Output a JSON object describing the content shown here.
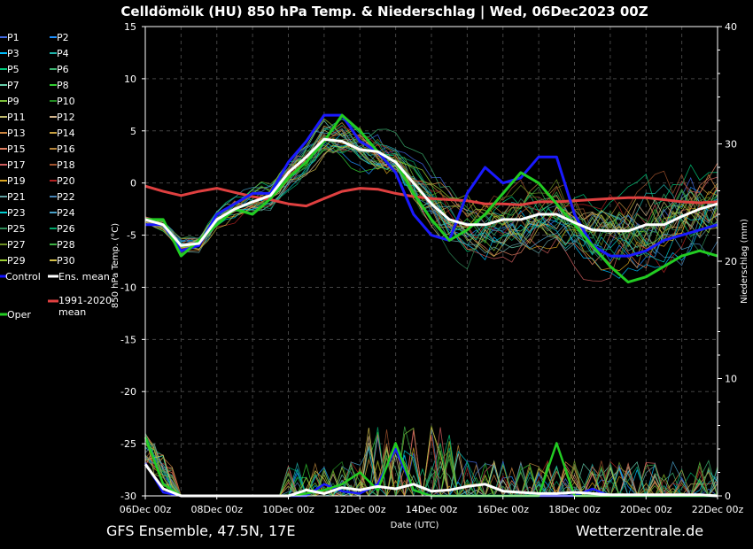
{
  "title": "Celldömölk  (HU)  850 hPa Temp. & Niederschlag | Wed, 06Dec2023 00Z",
  "footer_left": "GFS Ensemble, 47.5N, 17E",
  "footer_right": "Wetterzentrale.de",
  "chart_data": {
    "type": "line",
    "title": "Celldömölk  (HU)  850 hPa Temp. & Niederschlag | Wed, 06Dec2023 00Z",
    "xlabel": "Date (UTC)",
    "ylabel": "850 hPa Temp. (°C)",
    "y2label": "Niederschlag (mm)",
    "ylim": [
      -30,
      15
    ],
    "y2lim": [
      0,
      40
    ],
    "xlim_hours": [
      0,
      384
    ],
    "x_tick_hours": [
      0,
      48,
      96,
      144,
      192,
      240,
      288,
      336,
      384
    ],
    "x_tick_labels": [
      "06Dec 00z",
      "08Dec 00z",
      "10Dec 00z",
      "12Dec 00z",
      "14Dec 00z",
      "16Dec 00z",
      "18Dec 00z",
      "20Dec 00z",
      "22Dec 00z"
    ],
    "y_ticks": [
      15,
      10,
      5,
      0,
      -5,
      -10,
      -15,
      -20,
      -25,
      -30
    ],
    "y2_ticks": [
      40,
      30,
      20,
      10,
      0
    ],
    "grid": true,
    "legend_position": "left",
    "legend": [
      {
        "name": "P1",
        "color": "#4169e1"
      },
      {
        "name": "P2",
        "color": "#1e90ff"
      },
      {
        "name": "P3",
        "color": "#00bfff"
      },
      {
        "name": "P4",
        "color": "#20b2aa"
      },
      {
        "name": "P5",
        "color": "#00c87a"
      },
      {
        "name": "P6",
        "color": "#3cb371"
      },
      {
        "name": "P7",
        "color": "#66cdaa"
      },
      {
        "name": "P8",
        "color": "#32cd32"
      },
      {
        "name": "P9",
        "color": "#7cbf3a"
      },
      {
        "name": "P10",
        "color": "#228b22"
      },
      {
        "name": "P11",
        "color": "#bdb76b"
      },
      {
        "name": "P12",
        "color": "#d2b48c"
      },
      {
        "name": "P13",
        "color": "#cd853f"
      },
      {
        "name": "P14",
        "color": "#c8a040"
      },
      {
        "name": "P15",
        "color": "#e08060"
      },
      {
        "name": "P16",
        "color": "#b8863b"
      },
      {
        "name": "P17",
        "color": "#cd5c5c"
      },
      {
        "name": "P18",
        "color": "#a0522d"
      },
      {
        "name": "P19",
        "color": "#daa520"
      },
      {
        "name": "P20",
        "color": "#b22222"
      },
      {
        "name": "P21",
        "color": "#5f9ea0"
      },
      {
        "name": "P22",
        "color": "#4682b4"
      },
      {
        "name": "P23",
        "color": "#00ced1"
      },
      {
        "name": "P24",
        "color": "#48a0c8"
      },
      {
        "name": "P25",
        "color": "#2e8b57"
      },
      {
        "name": "P26",
        "color": "#00a86b"
      },
      {
        "name": "P27",
        "color": "#6b8e23"
      },
      {
        "name": "P28",
        "color": "#3cb043"
      },
      {
        "name": "P29",
        "color": "#9acd32"
      },
      {
        "name": "P30",
        "color": "#d4c04a"
      },
      {
        "name": "Control",
        "color": "#1010ff"
      },
      {
        "name": "Ens. mean",
        "color": "#ffffff"
      },
      {
        "name": "1991-2020 mean",
        "color": "#e04040"
      },
      {
        "name": "Oper",
        "color": "#22cc22"
      }
    ],
    "key_series": [
      {
        "name": "Control",
        "axis": "temp",
        "hours": [
          0,
          12,
          24,
          36,
          48,
          60,
          72,
          84,
          96,
          108,
          120,
          132,
          144,
          156,
          168,
          180,
          192,
          204,
          216,
          228,
          240,
          252,
          264,
          276,
          288,
          300,
          312,
          324,
          336,
          348,
          360,
          372,
          384
        ],
        "values": [
          -4,
          -4,
          -6.5,
          -6,
          -3,
          -2,
          -1,
          -1,
          2,
          4,
          6.5,
          6.5,
          4,
          3,
          1,
          -3,
          -5,
          -5.5,
          -1,
          1.5,
          0,
          0.5,
          2.5,
          2.5,
          -3,
          -6,
          -7,
          -7,
          -6.5,
          -5.5,
          -5,
          -4.5,
          -4
        ]
      },
      {
        "name": "Ens. mean",
        "axis": "temp",
        "hours": [
          0,
          12,
          24,
          36,
          48,
          60,
          72,
          84,
          96,
          108,
          120,
          132,
          144,
          156,
          168,
          180,
          192,
          204,
          216,
          228,
          240,
          252,
          264,
          276,
          288,
          300,
          312,
          324,
          336,
          348,
          360,
          372,
          384
        ],
        "values": [
          -3.5,
          -4,
          -6,
          -5.8,
          -3.5,
          -2.5,
          -1.8,
          -1.2,
          1,
          2.5,
          4.2,
          4,
          3.2,
          3,
          2,
          0,
          -2,
          -3.5,
          -4,
          -4,
          -3.5,
          -3.5,
          -3,
          -3,
          -3.8,
          -4.5,
          -4.6,
          -4.6,
          -4,
          -4,
          -3.2,
          -2.5,
          -2
        ]
      },
      {
        "name": "1991-2020 mean",
        "axis": "temp",
        "hours": [
          0,
          12,
          24,
          36,
          48,
          60,
          72,
          84,
          96,
          108,
          120,
          132,
          144,
          156,
          168,
          180,
          192,
          204,
          216,
          228,
          240,
          252,
          264,
          276,
          288,
          300,
          312,
          324,
          336,
          348,
          360,
          372,
          384
        ],
        "values": [
          -0.3,
          -0.8,
          -1.2,
          -0.8,
          -0.5,
          -0.9,
          -1.3,
          -1.6,
          -2,
          -2.2,
          -1.5,
          -0.8,
          -0.5,
          -0.6,
          -1,
          -1.3,
          -1.5,
          -1.6,
          -1.7,
          -2,
          -2,
          -2.1,
          -1.8,
          -1.8,
          -1.7,
          -1.6,
          -1.5,
          -1.4,
          -1.4,
          -1.6,
          -1.8,
          -1.9,
          -1.8
        ]
      },
      {
        "name": "Oper",
        "axis": "temp",
        "hours": [
          0,
          12,
          24,
          36,
          48,
          60,
          72,
          84,
          96,
          108,
          120,
          132,
          144,
          156,
          168,
          180,
          192,
          204,
          216,
          228,
          240,
          252,
          264,
          276,
          288,
          300,
          312,
          324,
          336,
          348,
          360,
          372,
          384
        ],
        "values": [
          -3.5,
          -3.5,
          -7,
          -5.5,
          -4,
          -2.5,
          -3,
          -1.5,
          0.5,
          2,
          4,
          6.5,
          5,
          3,
          2,
          -1,
          -3.5,
          -5.5,
          -4.5,
          -3,
          -1,
          1,
          0,
          -2,
          -4,
          -6,
          -8,
          -9.5,
          -9,
          -8,
          -7,
          -6.5,
          -7
        ]
      },
      {
        "name": "Control precip",
        "axis": "precip",
        "hours": [
          0,
          12,
          24,
          36,
          48,
          60,
          72,
          84,
          96,
          108,
          120,
          132,
          144,
          156,
          168,
          180,
          192,
          204,
          216,
          228,
          240,
          252,
          264,
          276,
          288,
          300,
          312,
          324,
          336,
          348,
          360,
          372,
          384
        ],
        "values": [
          2.8,
          0.3,
          0,
          0,
          0,
          0,
          0,
          0,
          0,
          0,
          1,
          0.4,
          0.2,
          1,
          4,
          0.5,
          0,
          0,
          0,
          0,
          0,
          0,
          0,
          0,
          0,
          0.6,
          0,
          0,
          0,
          0,
          0,
          0,
          0
        ]
      },
      {
        "name": "Ens. mean precip",
        "axis": "precip",
        "hours": [
          0,
          12,
          24,
          36,
          48,
          60,
          72,
          84,
          96,
          108,
          120,
          132,
          144,
          156,
          168,
          180,
          192,
          204,
          216,
          228,
          240,
          252,
          264,
          276,
          288,
          300,
          312,
          324,
          336,
          348,
          360,
          372,
          384
        ],
        "values": [
          2.7,
          0.6,
          0,
          0,
          0,
          0,
          0,
          0,
          0,
          0.5,
          0.2,
          0.7,
          0.5,
          0.8,
          0.6,
          1,
          0.4,
          0.5,
          0.8,
          1,
          0.4,
          0.3,
          0.2,
          0.2,
          0.3,
          0.2,
          0.1,
          0.1,
          0.1,
          0.1,
          0.1,
          0.1,
          0
        ]
      },
      {
        "name": "Oper precip",
        "axis": "precip",
        "hours": [
          0,
          12,
          24,
          36,
          48,
          60,
          72,
          84,
          96,
          108,
          120,
          132,
          144,
          156,
          168,
          180,
          192,
          204,
          216,
          228,
          240,
          252,
          264,
          276,
          288,
          300,
          312,
          324,
          336,
          348,
          360,
          372,
          384
        ],
        "values": [
          5,
          1,
          0,
          0,
          0,
          0,
          0,
          0,
          0,
          0.2,
          0.5,
          1,
          2,
          0.5,
          4.5,
          0.5,
          0,
          0,
          0,
          0,
          0,
          0,
          0,
          4.5,
          0,
          0,
          0,
          0,
          0,
          0,
          0,
          0,
          0
        ]
      }
    ]
  }
}
